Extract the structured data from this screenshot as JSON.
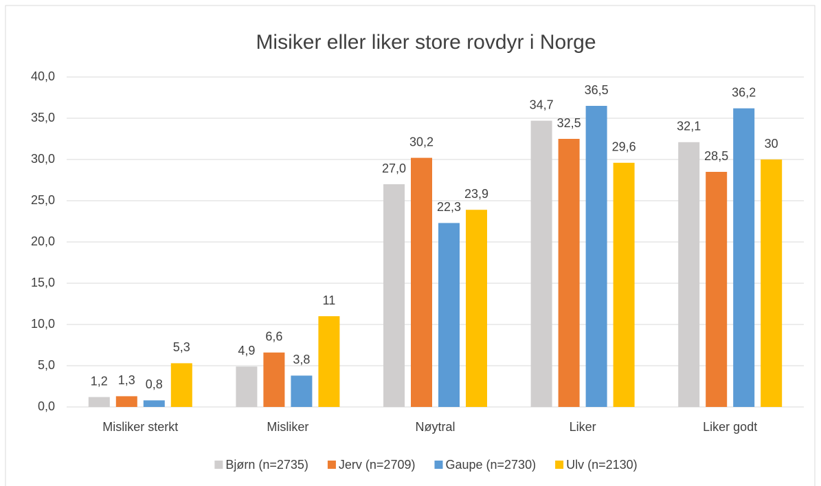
{
  "chart_data": {
    "type": "bar",
    "title": "Misiker eller liker store rovdyr i Norge",
    "categories": [
      "Misliker sterkt",
      "Misliker",
      "Nøytral",
      "Liker",
      "Liker godt"
    ],
    "series": [
      {
        "name": "Bjørn (n=2735)",
        "color": "#d0cece",
        "values": [
          1.2,
          4.9,
          27.0,
          34.7,
          32.1
        ],
        "value_labels": [
          "1,2",
          "4,9",
          "27,0",
          "34,7",
          "32,1"
        ]
      },
      {
        "name": "Jerv (n=2709)",
        "color": "#ed7d31",
        "values": [
          1.3,
          6.6,
          30.2,
          32.5,
          28.5
        ],
        "value_labels": [
          "1,3",
          "6,6",
          "30,2",
          "32,5",
          "28,5"
        ]
      },
      {
        "name": "Gaupe (n=2730)",
        "color": "#5b9bd5",
        "values": [
          0.8,
          3.8,
          22.3,
          36.5,
          36.2
        ],
        "value_labels": [
          "0,8",
          "3,8",
          "22,3",
          "36,5",
          "36,2"
        ]
      },
      {
        "name": "Ulv (n=2130)",
        "color": "#ffc000",
        "values": [
          5.3,
          11,
          23.9,
          29.6,
          30
        ],
        "value_labels": [
          "5,3",
          "11",
          "23,9",
          "29,6",
          "30"
        ]
      }
    ],
    "ylim": [
      0,
      40
    ],
    "yticks": [
      {
        "value": 0,
        "label": "0,0"
      },
      {
        "value": 5,
        "label": "5,0"
      },
      {
        "value": 10,
        "label": "10,0"
      },
      {
        "value": 15,
        "label": "15,0"
      },
      {
        "value": 20,
        "label": "20,0"
      },
      {
        "value": 25,
        "label": "25,0"
      },
      {
        "value": 30,
        "label": "30,0"
      },
      {
        "value": 35,
        "label": "35,0"
      },
      {
        "value": 40,
        "label": "40,0"
      }
    ],
    "grid": true,
    "legend": "bottom"
  }
}
